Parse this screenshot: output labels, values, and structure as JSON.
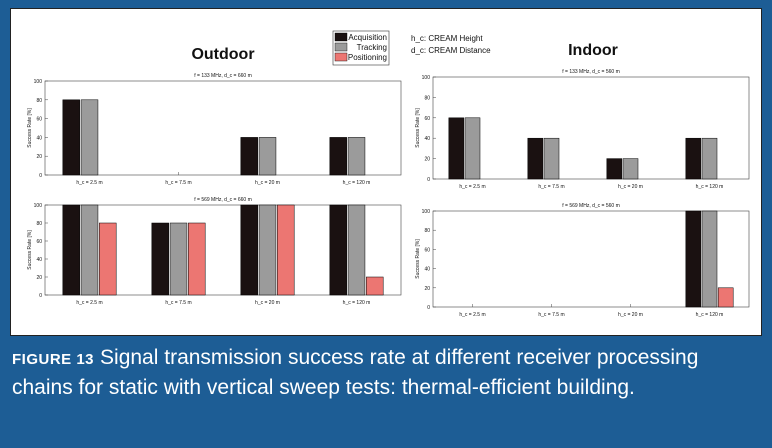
{
  "caption": {
    "label": "FIGURE 13",
    "text": "Signal transmission success rate at different receiver processing chains for static with vertical sweep tests: thermal-efficient building."
  },
  "colors": {
    "frame": "#1d5d95",
    "acquisition": "#1a1111",
    "tracking": "#9b9b9b",
    "positioning": "#ec7672"
  },
  "figure": {
    "outdoor_title": "Outdoor",
    "indoor_title": "Indoor",
    "note_height": "h_c: CREAM Height",
    "note_distance": "d_c: CREAM Distance",
    "legend": [
      "Acquisition",
      "Tracking",
      "Positioning"
    ]
  },
  "chart_data": [
    {
      "type": "bar",
      "group": "Outdoor",
      "title": "f = 133 MHz, d_c = 660 m",
      "categories": [
        "h_c = 2.5 m",
        "h_c = 7.5 m",
        "h_c = 20 m",
        "h_c = 120 m"
      ],
      "series": [
        {
          "name": "Acquisition",
          "values": [
            80,
            0,
            40,
            40
          ]
        },
        {
          "name": "Tracking",
          "values": [
            80,
            0,
            40,
            40
          ]
        },
        {
          "name": "Positioning",
          "values": [
            0,
            0,
            0,
            0
          ]
        }
      ],
      "ylabel": "Success Rate [%]",
      "ylim": [
        0,
        100
      ],
      "yticks": [
        0,
        20,
        40,
        60,
        80,
        100
      ]
    },
    {
      "type": "bar",
      "group": "Outdoor",
      "title": "f = 569 MHz, d_c = 660 m",
      "categories": [
        "h_c = 2.5 m",
        "h_c = 7.5 m",
        "h_c = 20 m",
        "h_c = 120 m"
      ],
      "series": [
        {
          "name": "Acquisition",
          "values": [
            100,
            80,
            100,
            100
          ]
        },
        {
          "name": "Tracking",
          "values": [
            100,
            80,
            100,
            100
          ]
        },
        {
          "name": "Positioning",
          "values": [
            80,
            80,
            100,
            20
          ]
        }
      ],
      "ylabel": "Success Rate [%]",
      "ylim": [
        0,
        100
      ],
      "yticks": [
        0,
        20,
        40,
        60,
        80,
        100
      ]
    },
    {
      "type": "bar",
      "group": "Indoor",
      "title": "f = 133 MHz, d_c = 560 m",
      "categories": [
        "h_c = 2.5 m",
        "h_c = 7.5 m",
        "h_c = 20 m",
        "h_c = 120 m"
      ],
      "series": [
        {
          "name": "Acquisition",
          "values": [
            60,
            40,
            20,
            40
          ]
        },
        {
          "name": "Tracking",
          "values": [
            60,
            40,
            20,
            40
          ]
        },
        {
          "name": "Positioning",
          "values": [
            0,
            0,
            0,
            0
          ]
        }
      ],
      "ylabel": "Success Rate [%]",
      "ylim": [
        0,
        100
      ],
      "yticks": [
        0,
        20,
        40,
        60,
        80,
        100
      ]
    },
    {
      "type": "bar",
      "group": "Indoor",
      "title": "f = 569 MHz, d_c = 560 m",
      "categories": [
        "h_c = 2.5 m",
        "h_c = 7.5 m",
        "h_c = 20 m",
        "h_c = 120 m"
      ],
      "series": [
        {
          "name": "Acquisition",
          "values": [
            0,
            0,
            0,
            100
          ]
        },
        {
          "name": "Tracking",
          "values": [
            0,
            0,
            0,
            100
          ]
        },
        {
          "name": "Positioning",
          "values": [
            0,
            0,
            0,
            20
          ]
        }
      ],
      "ylabel": "Success Rate [%]",
      "ylim": [
        0,
        100
      ],
      "yticks": [
        0,
        20,
        40,
        60,
        80,
        100
      ]
    }
  ]
}
